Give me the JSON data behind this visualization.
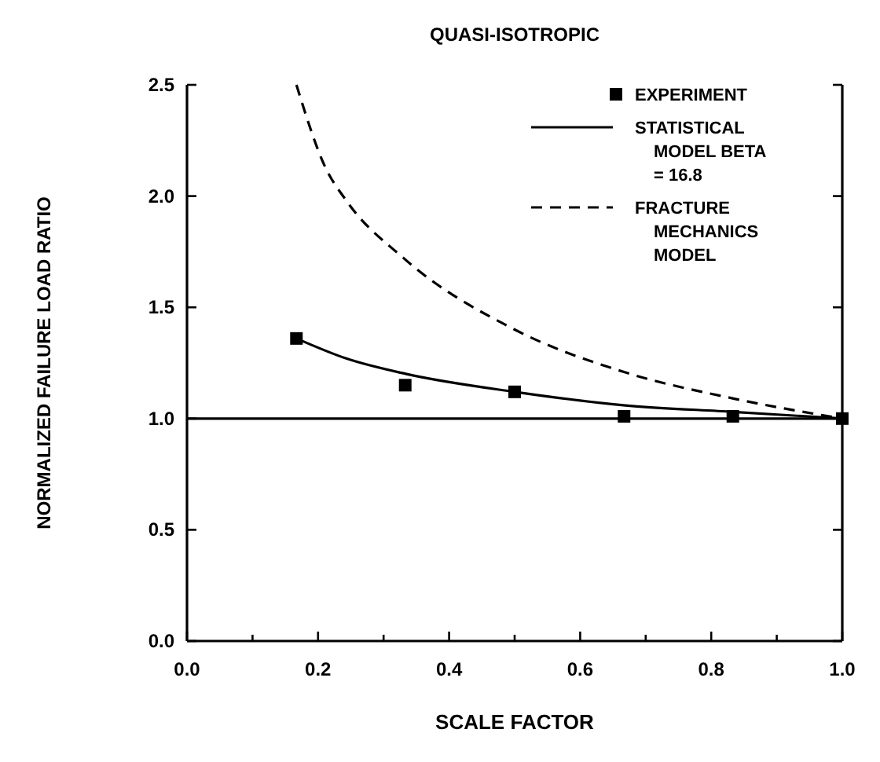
{
  "chart_data": {
    "type": "line",
    "title": "QUASI-ISOTROPIC",
    "xlabel": "SCALE FACTOR",
    "ylabel": "NORMALIZED FAILURE LOAD RATIO",
    "xlim": [
      0,
      1
    ],
    "ylim": [
      0,
      2.5
    ],
    "xticks": [
      {
        "value": 0,
        "label": "0.0"
      },
      {
        "value": 0.1,
        "label": null
      },
      {
        "value": 0.2,
        "label": "0.2"
      },
      {
        "value": 0.3,
        "label": null
      },
      {
        "value": 0.4,
        "label": "0.4"
      },
      {
        "value": 0.5,
        "label": null
      },
      {
        "value": 0.6,
        "label": "0.6"
      },
      {
        "value": 0.7,
        "label": null
      },
      {
        "value": 0.8,
        "label": "0.8"
      },
      {
        "value": 0.9,
        "label": null
      },
      {
        "value": 1,
        "label": "1.0"
      }
    ],
    "yticks": [
      {
        "value": 0,
        "label": "0.0"
      },
      {
        "value": 0.5,
        "label": "0.5"
      },
      {
        "value": 1,
        "label": "1.0"
      },
      {
        "value": 1.5,
        "label": "1.5"
      },
      {
        "value": 2,
        "label": "2.0"
      },
      {
        "value": 2.5,
        "label": "2.5"
      }
    ],
    "legend": "top right",
    "grid": false,
    "ref_lines": [
      {
        "axis": "y",
        "value": 1,
        "color": "#000000"
      }
    ],
    "series": [
      {
        "name": "EXPERIMENT",
        "type": "scatter",
        "marker": "square",
        "color": "#000000",
        "x": [
          0.167,
          0.333,
          0.5,
          0.667,
          0.833,
          1.0
        ],
        "values": [
          1.36,
          1.15,
          1.12,
          1.01,
          1.01,
          1.0
        ]
      },
      {
        "name": "STATISTICAL MODEL BETA = 16.8",
        "type": "line",
        "line_style": "solid",
        "color": "#000000",
        "x": [
          0.167,
          0.243,
          0.335,
          0.5,
          0.666,
          0.834,
          1.0
        ],
        "values": [
          1.36,
          1.27,
          1.2,
          1.12,
          1.06,
          1.03,
          1.0
        ]
      },
      {
        "name": "FRACTURE MECHANICS MODEL",
        "type": "line",
        "line_style": "dashed",
        "color": "#000000",
        "x": [
          0.167,
          0.211,
          0.243,
          0.331,
          0.5,
          0.666,
          0.834,
          1.0
        ],
        "values": [
          2.5,
          2.13,
          1.98,
          1.72,
          1.4,
          1.21,
          1.09,
          1.0
        ]
      }
    ]
  }
}
